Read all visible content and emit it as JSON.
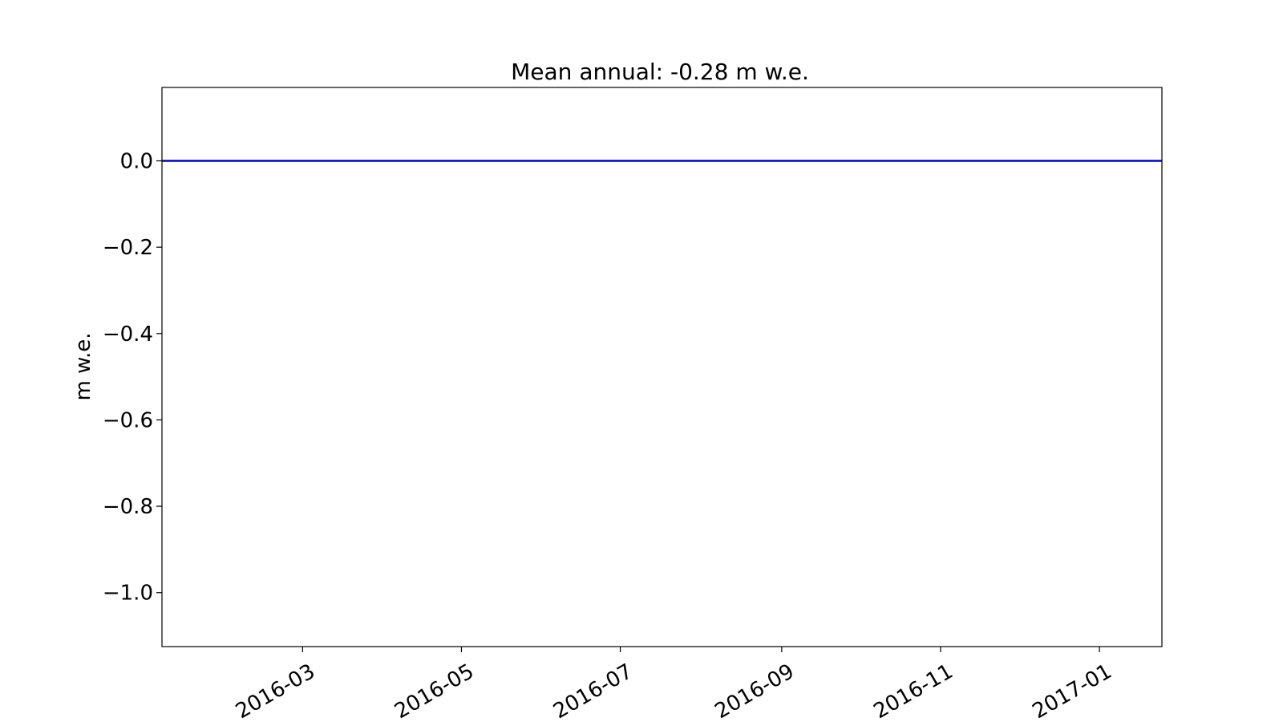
{
  "chart_data": {
    "type": "line",
    "title": "Mean annual: -0.28 m w.e.",
    "xlabel": "",
    "ylabel": "m w.e.",
    "xlim": [
      "2016-01-07",
      "2017-01-25"
    ],
    "ylim": [
      -1.125,
      0.17
    ],
    "x_ticks": [
      "2016-03",
      "2016-05",
      "2016-07",
      "2016-09",
      "2016-11",
      "2017-01"
    ],
    "y_ticks": [
      0.0,
      -0.2,
      -0.4,
      -0.6,
      -0.8,
      -1.0
    ],
    "y_tick_labels": [
      "0.0",
      "−0.2",
      "−0.4",
      "−0.6",
      "−0.8",
      "−1.0"
    ],
    "grid": false,
    "series": [
      {
        "color": "#0000cc",
        "x": [
          "2016-01-07",
          "2016-03-01",
          "2016-05-01",
          "2016-07-01",
          "2016-09-01",
          "2016-11-01",
          "2017-01-01",
          "2017-01-25"
        ],
        "values": [
          0.0,
          0.0,
          0.0,
          0.0,
          0.0,
          0.0,
          0.0,
          0.0
        ]
      }
    ]
  }
}
